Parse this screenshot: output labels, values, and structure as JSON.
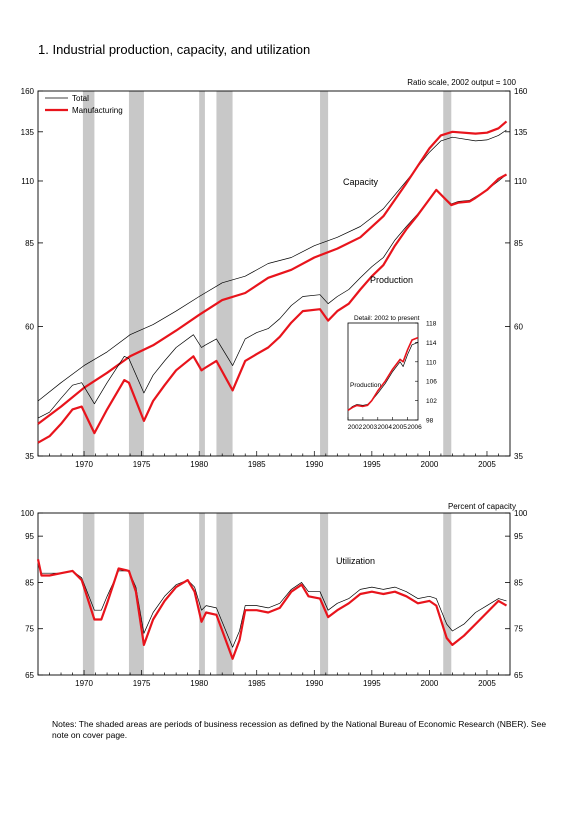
{
  "title": "1.  Industrial production, capacity, and utilization",
  "notes": "Notes: The shaded areas are periods of business recession as defined by the National Bureau of Economic Research (NBER). See note on cover page.",
  "colors": {
    "total": "#000000",
    "manufacturing": "#e8141c",
    "recession": "#c8c8c8"
  },
  "chart_data": [
    {
      "type": "line",
      "panel": "top",
      "scale": "log",
      "unit_note": "Ratio scale, 2002 output = 100",
      "yticks": [
        35,
        60,
        85,
        110,
        135,
        160
      ],
      "ylim": [
        35,
        160
      ],
      "xlim": [
        1966,
        2007
      ],
      "xticks": [
        1970,
        1975,
        1980,
        1985,
        1990,
        1995,
        2000,
        2005
      ],
      "legend": {
        "position": "top-left",
        "entries": [
          "Total",
          "Manufacturing"
        ]
      },
      "annotations": [
        "Capacity",
        "Production"
      ],
      "recessions": [
        [
          1969.9,
          1970.9
        ],
        [
          1973.9,
          1975.2
        ],
        [
          1980.0,
          1980.5
        ],
        [
          1981.5,
          1982.9
        ],
        [
          1990.5,
          1991.2
        ],
        [
          2001.2,
          2001.9
        ]
      ],
      "series": [
        {
          "name": "Total",
          "group": "Capacity",
          "x": [
            1966,
            1968,
            1970,
            1972,
            1974,
            1976,
            1978,
            1980,
            1982,
            1984,
            1986,
            1988,
            1990,
            1992,
            1994,
            1996,
            1998,
            2000,
            2001,
            2002,
            2004,
            2005,
            2006,
            2006.7
          ],
          "y": [
            44,
            47.5,
            51,
            54,
            58,
            60.5,
            64,
            68,
            72,
            74,
            78,
            80,
            84,
            87,
            91,
            98,
            110,
            124,
            130,
            132,
            130,
            130.5,
            133,
            136
          ]
        },
        {
          "name": "Manufacturing",
          "group": "Capacity",
          "x": [
            1966,
            1968,
            1970,
            1972,
            1974,
            1976,
            1978,
            1980,
            1982,
            1984,
            1986,
            1988,
            1990,
            1992,
            1994,
            1996,
            1998,
            2000,
            2001,
            2002,
            2004,
            2005,
            2006,
            2006.7
          ],
          "y": [
            40,
            43,
            46.5,
            49.5,
            53,
            55.5,
            59,
            63,
            67,
            69,
            73.5,
            76,
            80,
            83,
            87,
            95,
            109,
            126,
            133,
            135,
            134,
            134.5,
            137,
            141
          ]
        },
        {
          "name": "Total",
          "group": "Production",
          "x": [
            1966,
            1967,
            1968,
            1969,
            1969.8,
            1970.9,
            1972,
            1973.5,
            1973.9,
            1975.2,
            1976,
            1977,
            1978,
            1979.5,
            1980.2,
            1980.5,
            1981.5,
            1982.9,
            1984,
            1985,
            1986,
            1987,
            1988,
            1989,
            1990.5,
            1991.2,
            1992,
            1993,
            1994,
            1995,
            1996,
            1997,
            1998,
            1999,
            2000.6,
            2001.9,
            2002.5,
            2003.5,
            2004,
            2005,
            2006,
            2006.7
          ],
          "y": [
            41,
            42,
            44.5,
            47,
            47.5,
            43.5,
            47.5,
            53,
            52.5,
            45.5,
            49,
            52,
            55,
            58,
            55,
            55.5,
            57,
            51,
            57,
            58.5,
            59.5,
            62,
            65.5,
            68,
            68.5,
            66,
            68,
            70,
            73.5,
            77,
            80,
            86,
            91,
            96,
            106,
            100,
            101,
            101.5,
            103,
            106,
            110,
            113
          ]
        },
        {
          "name": "Manufacturing",
          "group": "Production",
          "x": [
            1966,
            1967,
            1968,
            1969,
            1969.8,
            1970.9,
            1972,
            1973.5,
            1973.9,
            1975.2,
            1976,
            1977,
            1978,
            1979.5,
            1980.2,
            1980.5,
            1981.5,
            1982.9,
            1984,
            1985,
            1986,
            1987,
            1988,
            1989,
            1990.5,
            1991.2,
            1992,
            1993,
            1994,
            1995,
            1996,
            1997,
            1998,
            1999,
            2000.6,
            2001.9,
            2002.5,
            2003.5,
            2004,
            2005,
            2006,
            2006.7
          ],
          "y": [
            37,
            38,
            40,
            42.5,
            43,
            38.5,
            42.5,
            48,
            47.5,
            40.5,
            44,
            47,
            50,
            53,
            50,
            50.5,
            52,
            46,
            52,
            53.5,
            55,
            57.5,
            61,
            64,
            64.5,
            61.5,
            64,
            66,
            70,
            74,
            77.5,
            84,
            90,
            95.5,
            106,
            99.5,
            100.5,
            101,
            102.5,
            106,
            111,
            113
          ]
        }
      ],
      "inset": {
        "title": "Detail: 2002 to present",
        "label": "Production",
        "xlim": [
          2002,
          2006.7
        ],
        "xticks": [
          2002,
          2003,
          2004,
          2005,
          2006
        ],
        "yticks": [
          98,
          102,
          106,
          110,
          114,
          118
        ],
        "ylim": [
          98,
          118
        ],
        "series": [
          {
            "name": "Total",
            "x": [
              2002,
              2002.3,
              2002.6,
              2003,
              2003.3,
              2003.6,
              2004,
              2004.5,
              2005,
              2005.5,
              2005.7,
              2006,
              2006.3,
              2006.7
            ],
            "y": [
              100,
              100.8,
              101.2,
              101,
              101.2,
              102,
              103.5,
              105.5,
              108,
              110,
              109,
              111.5,
              113.5,
              114
            ]
          },
          {
            "name": "Manufacturing",
            "x": [
              2002,
              2002.3,
              2002.6,
              2003,
              2003.3,
              2003.6,
              2004,
              2004.5,
              2005,
              2005.5,
              2005.7,
              2006,
              2006.3,
              2006.7
            ],
            "y": [
              100,
              100.6,
              101,
              100.8,
              101,
              102,
              104,
              106,
              108.5,
              110.5,
              110,
              112.5,
              114.5,
              115
            ]
          }
        ]
      }
    },
    {
      "type": "line",
      "panel": "bottom",
      "unit_note": "Percent of capacity",
      "annotations": [
        "Utilization"
      ],
      "yticks": [
        65,
        75,
        85,
        95,
        100
      ],
      "ylim": [
        65,
        100
      ],
      "xlim": [
        1966,
        2007
      ],
      "xticks": [
        1970,
        1975,
        1980,
        1985,
        1990,
        1995,
        2000,
        2005
      ],
      "recessions": [
        [
          1969.9,
          1970.9
        ],
        [
          1973.9,
          1975.2
        ],
        [
          1980.0,
          1980.5
        ],
        [
          1981.5,
          1982.9
        ],
        [
          1990.5,
          1991.2
        ],
        [
          2001.2,
          2001.9
        ]
      ],
      "series": [
        {
          "name": "Total",
          "x": [
            1966,
            1966.3,
            1967,
            1968,
            1969,
            1969.8,
            1970.9,
            1971.5,
            1972,
            1973,
            1973.9,
            1974.5,
            1975.2,
            1976,
            1977,
            1978,
            1979,
            1979.6,
            1980.2,
            1980.6,
            1981.5,
            1982.9,
            1983.5,
            1984,
            1985,
            1986,
            1987,
            1988,
            1988.9,
            1989.5,
            1990.5,
            1991.2,
            1992,
            1993,
            1994,
            1995,
            1996,
            1997,
            1998,
            1999,
            2000,
            2000.6,
            2001.5,
            2002,
            2003,
            2004,
            2005,
            2006,
            2006.7
          ],
          "y": [
            89,
            87,
            87,
            87,
            87.5,
            86,
            79,
            79,
            82,
            87.5,
            87.5,
            84,
            74,
            78.5,
            82,
            84.5,
            85.5,
            84,
            79,
            80,
            79.5,
            71,
            74.5,
            80,
            80,
            79.5,
            80.5,
            83.5,
            85,
            83,
            83,
            79,
            80.5,
            81.5,
            83.5,
            84,
            83.5,
            84,
            83,
            81.5,
            82,
            81.5,
            76,
            74.5,
            76,
            78.5,
            80,
            81.5,
            81
          ]
        },
        {
          "name": "Manufacturing",
          "x": [
            1966,
            1966.3,
            1967,
            1968,
            1969,
            1969.8,
            1970.9,
            1971.5,
            1972,
            1973,
            1973.9,
            1974.5,
            1975.2,
            1976,
            1977,
            1978,
            1979,
            1979.6,
            1980.2,
            1980.6,
            1981.5,
            1982.9,
            1983.5,
            1984,
            1985,
            1986,
            1987,
            1988,
            1988.9,
            1989.5,
            1990.5,
            1991.2,
            1992,
            1993,
            1994,
            1995,
            1996,
            1997,
            1998,
            1999,
            2000,
            2000.6,
            2001.5,
            2002,
            2003,
            2004,
            2005,
            2006,
            2006.7
          ],
          "y": [
            90,
            86.5,
            86.5,
            87,
            87.5,
            85.5,
            77,
            77,
            80.5,
            88,
            87.5,
            83,
            71.5,
            77,
            81,
            84,
            85.5,
            83,
            76.5,
            78.5,
            78,
            68.5,
            72.5,
            79,
            79,
            78.5,
            79.5,
            83,
            84.5,
            82,
            81.5,
            77.5,
            79,
            80.5,
            82.5,
            83,
            82.5,
            83,
            82,
            80.5,
            81,
            80,
            73,
            71.5,
            73.5,
            76,
            78.5,
            81,
            80
          ]
        }
      ]
    }
  ]
}
